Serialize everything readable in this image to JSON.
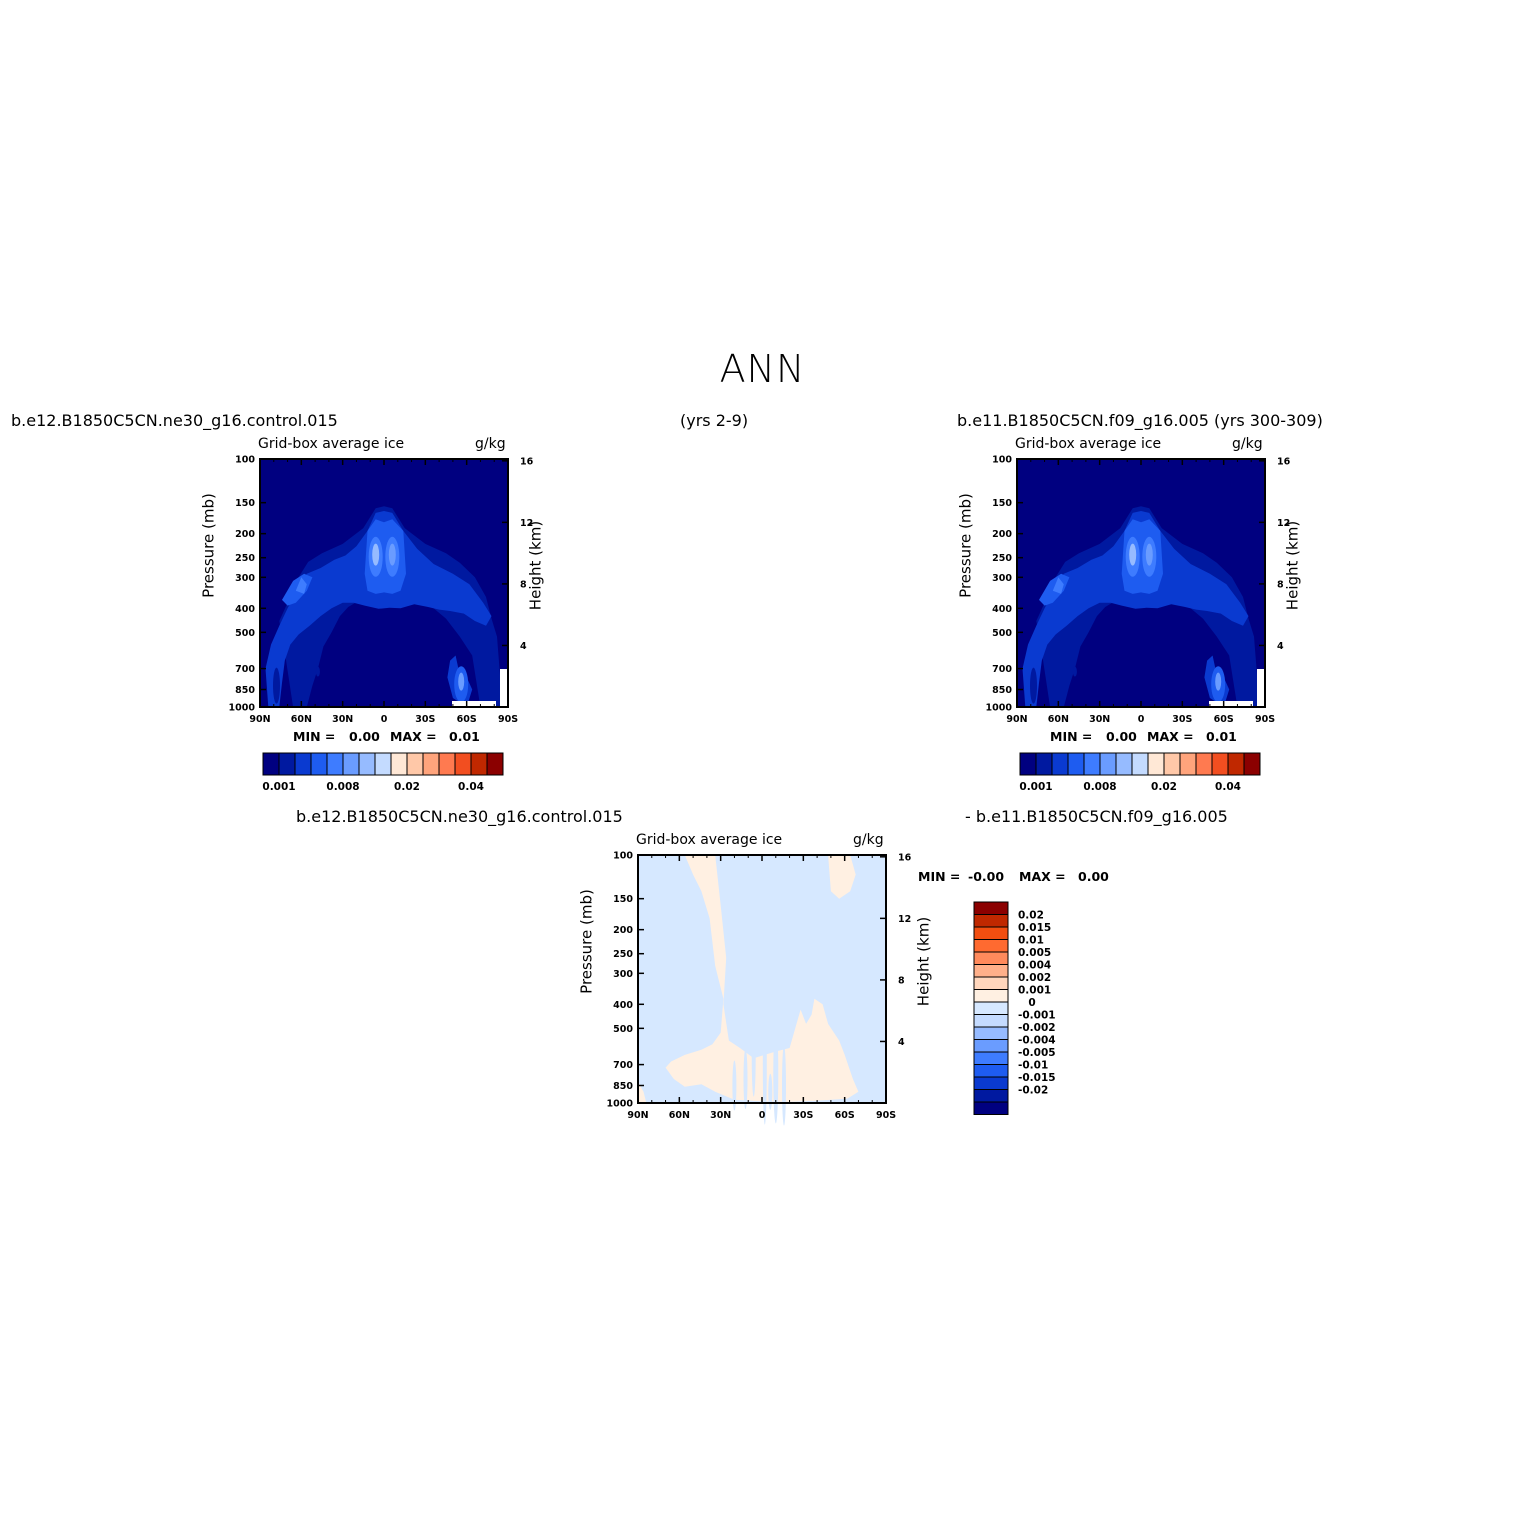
{
  "page": {
    "main_title": "ANN",
    "case1_name": "b.e12.B1850C5CN.ne30_g16.control.015",
    "case1_years": "(yrs 2-9)",
    "case2_label": "b.e11.B1850C5CN.f09_g16.005 (yrs 300-309)",
    "diff_left": "b.e12.B1850C5CN.ne30_g16.control.015",
    "diff_right": "- b.e11.B1850C5CN.f09_g16.005"
  },
  "colors": {
    "abs_levels": [
      "#000080",
      "#0019a0",
      "#0a3ad0",
      "#1e5cf0",
      "#3e7cff",
      "#6a9cff",
      "#96bbff",
      "#c4dbff",
      "#ffe8d6",
      "#ffc8a8",
      "#ffa47c",
      "#ff7a50",
      "#f24e20",
      "#c02800",
      "#8b0000"
    ],
    "diff_levels": [
      "#000080",
      "#0019a0",
      "#0a3ad0",
      "#1e5cf0",
      "#3e7cff",
      "#6a9cff",
      "#96bbff",
      "#c4dbff",
      "#d6e8ff",
      "#fff0e2",
      "#ffd6bc",
      "#ffb08a",
      "#ff8a5c",
      "#ff6a30",
      "#f24e10",
      "#c02800",
      "#8b0000"
    ]
  },
  "chart_data": [
    {
      "type": "heatmap",
      "title": "Grid-box average ice",
      "units": "g/kg",
      "xlabel": "",
      "ylabel": "Pressure (mb)",
      "ylabel_right": "Height (km)",
      "x_ticks": [
        "90N",
        "60N",
        "30N",
        "0",
        "30S",
        "60S",
        "90S"
      ],
      "y_ticks": [
        "100",
        "150",
        "200",
        "250",
        "300",
        "400",
        "500",
        "700",
        "850",
        "1000"
      ],
      "y_ticks_right": [
        "16",
        "12",
        "8",
        "4"
      ],
      "xlim": [
        90,
        -90
      ],
      "ylim": [
        1000,
        100
      ],
      "min_label": "MIN =",
      "min_value": "0.00",
      "max_label": "MAX =",
      "max_value": "0.01",
      "colorbar_labels": [
        "0.001",
        "0.008",
        "0.02",
        "0.04"
      ]
    },
    {
      "type": "heatmap",
      "title": "Grid-box average ice",
      "units": "g/kg",
      "xlabel": "",
      "ylabel": "Pressure (mb)",
      "ylabel_right": "Height (km)",
      "x_ticks": [
        "90N",
        "60N",
        "30N",
        "0",
        "30S",
        "60S",
        "90S"
      ],
      "y_ticks": [
        "100",
        "150",
        "200",
        "250",
        "300",
        "400",
        "500",
        "700",
        "850",
        "1000"
      ],
      "y_ticks_right": [
        "16",
        "12",
        "8",
        "4"
      ],
      "xlim": [
        90,
        -90
      ],
      "ylim": [
        1000,
        100
      ],
      "min_label": "MIN =",
      "min_value": "0.00",
      "max_label": "MAX =",
      "max_value": "0.01",
      "colorbar_labels": [
        "0.001",
        "0.008",
        "0.02",
        "0.04"
      ]
    },
    {
      "type": "heatmap",
      "title": "Grid-box average ice",
      "units": "g/kg",
      "xlabel": "",
      "ylabel": "Pressure (mb)",
      "ylabel_right": "Height (km)",
      "x_ticks": [
        "90N",
        "60N",
        "30N",
        "0",
        "30S",
        "60S",
        "90S"
      ],
      "y_ticks": [
        "100",
        "150",
        "200",
        "250",
        "300",
        "400",
        "500",
        "700",
        "850",
        "1000"
      ],
      "y_ticks_right": [
        "16",
        "12",
        "8",
        "4"
      ],
      "xlim": [
        90,
        -90
      ],
      "ylim": [
        1000,
        100
      ],
      "min_label": "MIN =",
      "min_value": "-0.00",
      "max_label": "MAX =",
      "max_value": "0.00",
      "colorbar_labels": [
        "0.02",
        "0.015",
        "0.01",
        "0.005",
        "0.004",
        "0.002",
        "0.001",
        "0",
        "-0.001",
        "-0.002",
        "-0.004",
        "-0.005",
        "-0.01",
        "-0.015",
        "-0.02"
      ]
    }
  ]
}
